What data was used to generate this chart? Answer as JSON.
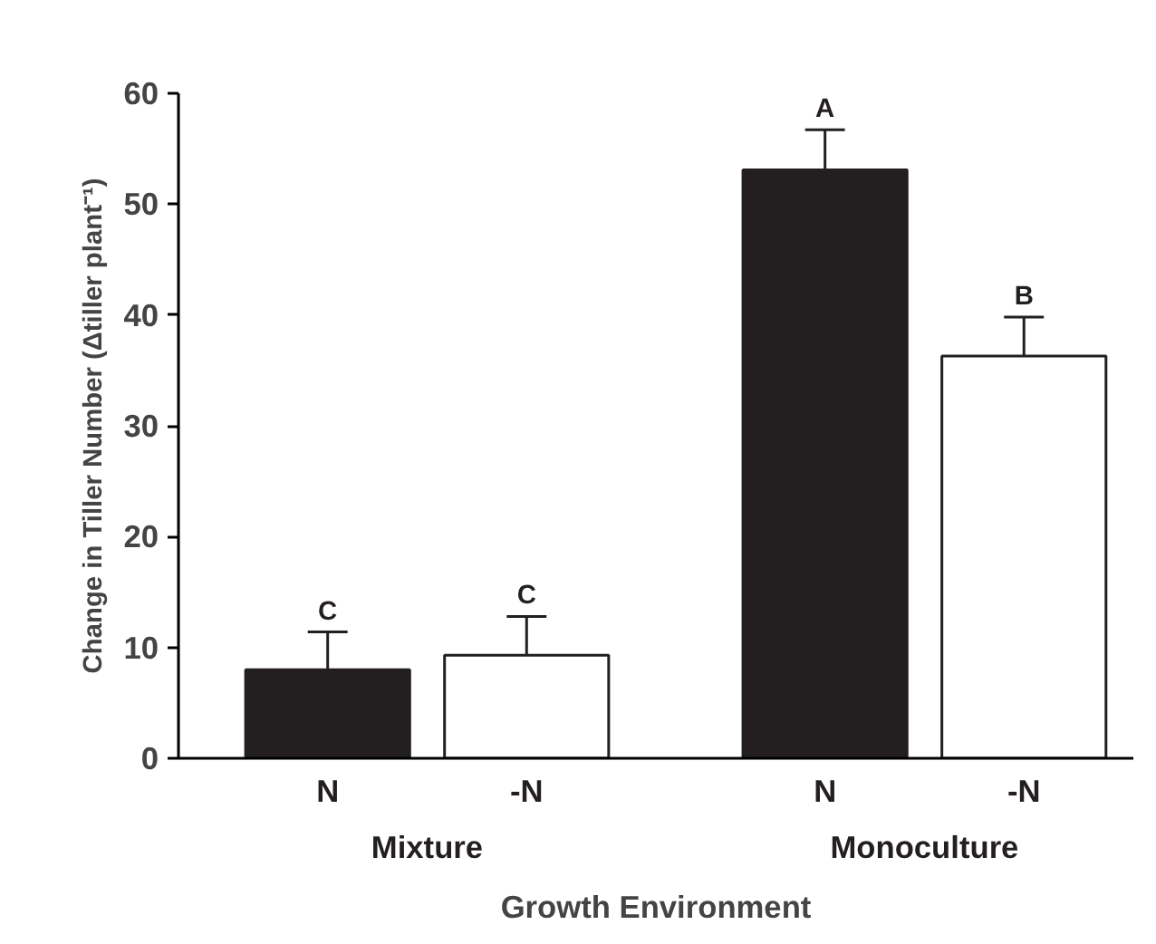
{
  "chart_data": {
    "type": "bar",
    "xlabel": "Growth Environment",
    "ylabel": "Change in Tiller Number (Δtiller plant⁻¹)",
    "categories": [
      "Mixture",
      "Monoculture"
    ],
    "series": [
      {
        "name": "N",
        "color": "#231f20",
        "values": [
          8.0,
          53.1
        ],
        "errors": [
          3.4,
          3.6
        ]
      },
      {
        "name": "-N",
        "color": "#ffffff",
        "values": [
          9.3,
          36.3
        ],
        "errors": [
          3.5,
          3.5
        ]
      }
    ],
    "annotations": [
      "C",
      "C",
      "A",
      "B"
    ],
    "ylim": [
      0,
      60
    ],
    "yticks": [
      0,
      10,
      20,
      30,
      40,
      50,
      60
    ],
    "grid": false,
    "legend": false
  }
}
